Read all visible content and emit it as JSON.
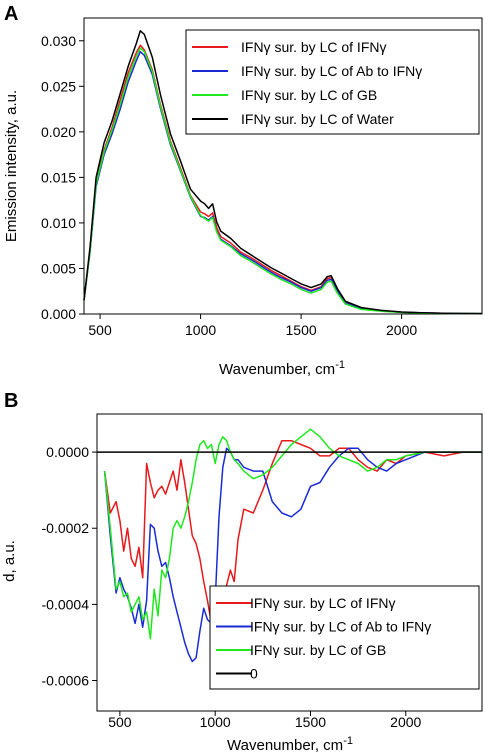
{
  "chart_data": [
    {
      "panel": "A",
      "type": "line",
      "xlabel": "Wavenumber, cm",
      "xlabel_sup": "-1",
      "ylabel": "Emission intensity, a.u.",
      "xlim": [
        420,
        2400
      ],
      "ylim": [
        0,
        0.0325
      ],
      "xticks": [
        500,
        1000,
        1500,
        2000
      ],
      "xtick_labels": [
        "500",
        "1000",
        "1500",
        "2000"
      ],
      "yticks": [
        0,
        0.005,
        0.01,
        0.015,
        0.02,
        0.025,
        0.03
      ],
      "ytick_labels": [
        "0.000",
        "0.005",
        "0.010",
        "0.015",
        "0.020",
        "0.025",
        "0.030"
      ],
      "grid": false,
      "legend_position": "top-right",
      "x": [
        420,
        450,
        480,
        520,
        560,
        600,
        640,
        680,
        700,
        720,
        760,
        800,
        850,
        900,
        950,
        1000,
        1020,
        1040,
        1060,
        1080,
        1100,
        1150,
        1200,
        1250,
        1300,
        1350,
        1400,
        1450,
        1500,
        1550,
        1600,
        1630,
        1650,
        1680,
        1720,
        1800,
        1900,
        2000,
        2100,
        2200,
        2300,
        2400
      ],
      "series": [
        {
          "name": "IFNγ sur. by LC of IFNγ",
          "color": "#e8191c",
          "values": [
            0.0015,
            0.007,
            0.0145,
            0.018,
            0.0205,
            0.0235,
            0.0265,
            0.0287,
            0.0295,
            0.029,
            0.0268,
            0.023,
            0.019,
            0.016,
            0.013,
            0.0112,
            0.011,
            0.0107,
            0.0111,
            0.0095,
            0.0085,
            0.0078,
            0.0068,
            0.0062,
            0.0055,
            0.0048,
            0.0042,
            0.0036,
            0.003,
            0.0026,
            0.003,
            0.0039,
            0.004,
            0.0026,
            0.0013,
            0.0006,
            0.00035,
            0.0002,
            0.00012,
            8e-05,
            5e-05,
            4e-05
          ]
        },
        {
          "name": "IFNγ sur. by LC of Ab to IFNγ",
          "color": "#1a2bd6",
          "values": [
            0.0015,
            0.0068,
            0.014,
            0.0175,
            0.0198,
            0.0225,
            0.0255,
            0.0278,
            0.0288,
            0.0284,
            0.0263,
            0.0226,
            0.0186,
            0.0157,
            0.0128,
            0.0107,
            0.0106,
            0.0103,
            0.0107,
            0.0091,
            0.0082,
            0.0075,
            0.0066,
            0.006,
            0.0053,
            0.0046,
            0.004,
            0.0035,
            0.0029,
            0.0025,
            0.0029,
            0.0037,
            0.0038,
            0.0025,
            0.0012,
            0.0006,
            0.00034,
            0.0002,
            0.00012,
            8e-05,
            5e-05,
            4e-05
          ]
        },
        {
          "name": "IFNγ sur. by LC of GB",
          "color": "#1ee81e",
          "values": [
            0.0015,
            0.0069,
            0.0143,
            0.0178,
            0.0202,
            0.023,
            0.026,
            0.0283,
            0.0292,
            0.0288,
            0.0266,
            0.0228,
            0.0188,
            0.0158,
            0.0129,
            0.0108,
            0.0105,
            0.0102,
            0.0106,
            0.009,
            0.0081,
            0.0074,
            0.0064,
            0.0058,
            0.0051,
            0.0044,
            0.0038,
            0.0033,
            0.0027,
            0.0023,
            0.0027,
            0.0035,
            0.0036,
            0.0023,
            0.0011,
            0.0005,
            0.0003,
            0.00018,
            0.0001,
            7e-05,
            5e-05,
            4e-05
          ]
        },
        {
          "name": "IFNγ sur. by LC of Water",
          "color": "#000000",
          "values": [
            0.0015,
            0.0073,
            0.015,
            0.0188,
            0.0212,
            0.0242,
            0.0272,
            0.0297,
            0.0311,
            0.0307,
            0.0282,
            0.0241,
            0.0198,
            0.0168,
            0.0137,
            0.0124,
            0.0121,
            0.0116,
            0.0121,
            0.0101,
            0.0091,
            0.0083,
            0.0072,
            0.0065,
            0.0058,
            0.0051,
            0.0045,
            0.0039,
            0.0033,
            0.0029,
            0.0033,
            0.0041,
            0.0042,
            0.0028,
            0.0014,
            0.0007,
            0.0004,
            0.00022,
            0.00013,
            9e-05,
            6e-05,
            4e-05
          ]
        }
      ]
    },
    {
      "panel": "B",
      "type": "line",
      "xlabel": "Wavenumber, cm",
      "xlabel_sup": "-1",
      "ylabel": "d, a.u.",
      "xlim": [
        380,
        2400
      ],
      "ylim": [
        -0.00068,
        0.0001
      ],
      "xticks": [
        500,
        1000,
        1500,
        2000
      ],
      "xtick_labels": [
        "500",
        "1000",
        "1500",
        "2000"
      ],
      "yticks": [
        0,
        -0.0002,
        -0.0004,
        -0.0006
      ],
      "ytick_labels": [
        "0.0000",
        "-0.0002",
        "-0.0004",
        "-0.0006"
      ],
      "grid": false,
      "legend_position": "bottom-right",
      "series": [
        {
          "name": "IFNγ sur. by LC of IFNγ",
          "color": "#e8191c",
          "x": [
            420,
            450,
            480,
            500,
            520,
            540,
            560,
            580,
            600,
            620,
            640,
            660,
            680,
            700,
            720,
            740,
            760,
            780,
            800,
            820,
            840,
            860,
            880,
            900,
            920,
            940,
            960,
            980,
            1000,
            1020,
            1040,
            1060,
            1080,
            1100,
            1120,
            1150,
            1200,
            1250,
            1300,
            1350,
            1400,
            1450,
            1500,
            1550,
            1600,
            1650,
            1700,
            1750,
            1800,
            1850,
            1900,
            1950,
            2000,
            2100,
            2200,
            2300,
            2400
          ],
          "values": [
            -5e-05,
            -0.00016,
            -0.00013,
            -0.00018,
            -0.00026,
            -0.0002,
            -0.00028,
            -0.0003,
            -0.00025,
            -0.00033,
            -3e-05,
            -8e-05,
            -0.00012,
            -0.0001,
            -9e-05,
            -0.00011,
            -8e-05,
            -5e-05,
            -0.0001,
            -2e-05,
            -8e-05,
            -0.00015,
            -0.00022,
            -0.00024,
            -0.00028,
            -0.00034,
            -0.00039,
            -0.00045,
            -0.00049,
            -0.00043,
            -0.00042,
            -0.00035,
            -0.00031,
            -0.00034,
            -0.00023,
            -0.00015,
            -0.00016,
            -0.0001,
            -3e-05,
            3e-05,
            3e-05,
            2e-05,
            1e-05,
            -1e-05,
            -1e-05,
            1e-05,
            1e-05,
            -2e-05,
            -4e-05,
            -5e-05,
            -2e-05,
            -3e-05,
            -1e-05,
            0,
            -1e-05,
            0,
            0
          ]
        },
        {
          "name": "IFNγ sur. by LC of Ab to IFNγ",
          "color": "#1a2bd6",
          "x": [
            420,
            450,
            480,
            500,
            520,
            540,
            560,
            580,
            600,
            620,
            640,
            660,
            680,
            700,
            720,
            740,
            760,
            780,
            800,
            820,
            840,
            860,
            880,
            900,
            920,
            940,
            960,
            980,
            1000,
            1020,
            1040,
            1060,
            1080,
            1100,
            1120,
            1150,
            1200,
            1250,
            1300,
            1350,
            1400,
            1450,
            1500,
            1550,
            1600,
            1650,
            1700,
            1750,
            1800,
            1850,
            1900,
            1950,
            2000,
            2100,
            2200,
            2300,
            2400
          ],
          "values": [
            -5e-05,
            -0.00022,
            -0.00037,
            -0.00033,
            -0.00036,
            -0.00038,
            -0.00041,
            -0.00045,
            -0.0004,
            -0.00046,
            -0.00039,
            -0.00019,
            -0.0002,
            -0.00026,
            -0.0003,
            -0.00029,
            -0.00033,
            -0.00038,
            -0.00042,
            -0.00046,
            -0.0005,
            -0.00053,
            -0.00055,
            -0.00054,
            -0.00047,
            -0.00041,
            -0.00044,
            -0.00045,
            -0.00039,
            -0.00017,
            -4e-05,
            1e-05,
            0,
            -2e-05,
            -2e-05,
            -4e-05,
            -5e-05,
            -5e-05,
            -0.00013,
            -0.00016,
            -0.00017,
            -0.00015,
            -9e-05,
            -8e-05,
            -4e-05,
            -1e-05,
            1e-05,
            1e-05,
            -2e-05,
            -4e-05,
            -5e-05,
            -3e-05,
            -2e-05,
            0,
            0,
            0,
            0
          ]
        },
        {
          "name": "IFNγ sur. by LC of GB",
          "color": "#1ee81e",
          "x": [
            420,
            450,
            480,
            500,
            520,
            540,
            560,
            580,
            600,
            620,
            640,
            660,
            680,
            700,
            720,
            740,
            760,
            780,
            800,
            820,
            840,
            860,
            880,
            900,
            920,
            940,
            960,
            980,
            1000,
            1020,
            1040,
            1060,
            1080,
            1100,
            1120,
            1150,
            1200,
            1250,
            1300,
            1350,
            1400,
            1450,
            1500,
            1550,
            1600,
            1650,
            1700,
            1750,
            1800,
            1850,
            1900,
            1950,
            2000,
            2100,
            2200,
            2300,
            2400
          ],
          "values": [
            -5e-05,
            -0.0002,
            -0.00036,
            -0.00034,
            -0.00038,
            -0.00037,
            -0.00042,
            -0.0004,
            -0.00038,
            -0.00044,
            -0.00042,
            -0.00049,
            -0.00036,
            -0.00043,
            -0.00031,
            -0.00033,
            -0.00028,
            -0.0002,
            -0.00018,
            -0.0002,
            -0.00017,
            -0.00013,
            -8e-05,
            -2e-05,
            2e-05,
            3e-05,
            1e-05,
            2e-05,
            -3e-05,
            2e-05,
            4e-05,
            3e-05,
            0,
            -2e-05,
            -3e-05,
            -5e-05,
            -7e-05,
            -6e-05,
            -4e-05,
            -1e-05,
            2e-05,
            4e-05,
            6e-05,
            4e-05,
            1e-05,
            -1e-05,
            -2e-05,
            -3e-05,
            -5e-05,
            -4e-05,
            -2e-05,
            -2e-05,
            -1e-05,
            0,
            0,
            0,
            0
          ]
        },
        {
          "name": "0",
          "color": "#000000",
          "x": [
            380,
            2400
          ],
          "values": [
            0,
            0
          ]
        }
      ]
    }
  ]
}
